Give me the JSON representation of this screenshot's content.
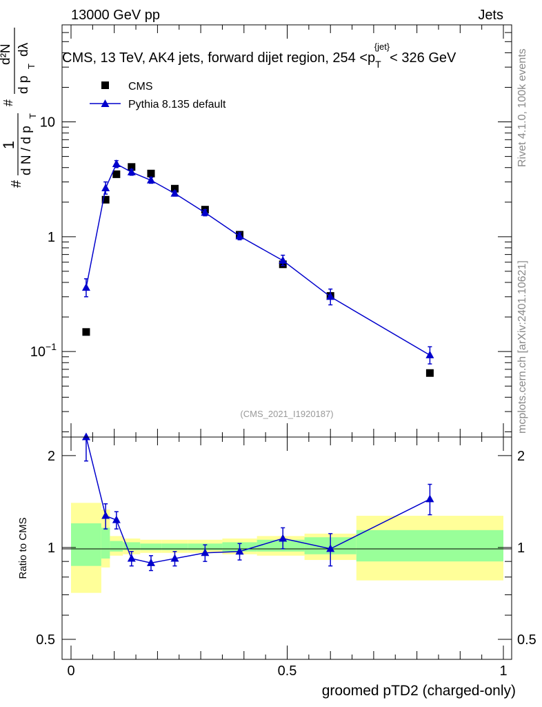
{
  "header": {
    "left": "13000 GeV pp",
    "right": "Jets"
  },
  "side_labels": {
    "rivet": "Rivet 4.1.0,  100k events",
    "mcplots": "mcplots.cern.ch [arXiv:2401.10621]"
  },
  "chart_data": [
    {
      "type": "scatter",
      "panel": "main",
      "title": "CMS, 13 TeV, AK4 jets, forward dijet region, 254 <p_T^{jet}< 326 GeV",
      "title_parts": {
        "prefix": "CMS, 13 TeV, AK4 jets, forward dijet region, 254 <p",
        "sub": "T",
        "sup": "{jet}",
        "suffix": "< 326 GeV"
      },
      "ylabel_text": "# 1/dN/dp_T # d²N/dp_T dλ",
      "ylabel_parts": {
        "hash1": "#",
        "one": "1",
        "dn_over_dp": "d N / d p",
        "sub_t": "T",
        "hash2": "#",
        "num": "d²N",
        "den": "d p",
        "den_tail": "dλ"
      },
      "yscale": "log",
      "xlim": [
        0,
        1
      ],
      "ylim": [
        0.018,
        70
      ],
      "y_ticks": [
        {
          "value": 0.1,
          "base": "10",
          "exp": "−1"
        },
        {
          "value": 1,
          "label": "1"
        },
        {
          "value": 10,
          "label": "10"
        }
      ],
      "watermark": "(CMS_2021_I1920187)",
      "legend": [
        "CMS",
        "Pythia 8.135 default"
      ],
      "legend_position": "top-left",
      "series": [
        {
          "name": "CMS",
          "marker": "square",
          "color": "#000000",
          "x": [
            0.035,
            0.08,
            0.105,
            0.14,
            0.185,
            0.24,
            0.31,
            0.39,
            0.49,
            0.6,
            0.83
          ],
          "y": [
            0.148,
            2.1,
            3.5,
            4.05,
            3.55,
            2.62,
            1.72,
            1.04,
            0.575,
            0.305,
            0.065
          ]
        },
        {
          "name": "Pythia 8.135 default",
          "marker": "triangle",
          "color": "#0000cc",
          "x": [
            0.035,
            0.08,
            0.105,
            0.14,
            0.185,
            0.24,
            0.31,
            0.39,
            0.49,
            0.6,
            0.83
          ],
          "y": [
            0.36,
            2.65,
            4.3,
            3.65,
            3.1,
            2.38,
            1.62,
            1.01,
            0.62,
            0.3,
            0.093
          ],
          "err_lo": [
            0.06,
            0.3,
            0.3,
            0.22,
            0.18,
            0.12,
            0.1,
            0.07,
            0.06,
            0.045,
            0.015
          ],
          "err_hi": [
            0.07,
            0.35,
            0.3,
            0.22,
            0.18,
            0.12,
            0.1,
            0.07,
            0.07,
            0.05,
            0.017
          ]
        }
      ]
    },
    {
      "type": "scatter",
      "panel": "ratio",
      "ylabel": "Ratio to CMS",
      "xlabel": "groomed pTD2 (charged-only)",
      "xlim": [
        0,
        1
      ],
      "ylim": [
        0.43,
        2.3
      ],
      "yscale": "log",
      "y_ticks": [
        {
          "value": 0.5,
          "label": "0.5"
        },
        {
          "value": 1,
          "label": "1"
        },
        {
          "value": 2,
          "label": "2"
        }
      ],
      "x_ticks": [
        {
          "value": 0,
          "label": "0"
        },
        {
          "value": 0.5,
          "label": "0.5"
        },
        {
          "value": 1,
          "label": "1"
        }
      ],
      "uncertainty_bands": [
        {
          "x0": 0.0,
          "x1": 0.07,
          "outer": [
            0.71,
            1.4
          ],
          "inner": [
            0.87,
            1.2
          ]
        },
        {
          "x0": 0.07,
          "x1": 0.09,
          "outer": [
            0.86,
            1.33
          ],
          "inner": [
            0.92,
            1.16
          ]
        },
        {
          "x0": 0.09,
          "x1": 0.12,
          "outer": [
            0.94,
            1.09
          ],
          "inner": [
            0.97,
            1.05
          ]
        },
        {
          "x0": 0.12,
          "x1": 0.16,
          "outer": [
            0.95,
            1.07
          ],
          "inner": [
            0.98,
            1.04
          ]
        },
        {
          "x0": 0.16,
          "x1": 0.21,
          "outer": [
            0.96,
            1.06
          ],
          "inner": [
            0.98,
            1.03
          ]
        },
        {
          "x0": 0.21,
          "x1": 0.27,
          "outer": [
            0.96,
            1.06
          ],
          "inner": [
            0.98,
            1.03
          ]
        },
        {
          "x0": 0.27,
          "x1": 0.35,
          "outer": [
            0.96,
            1.06
          ],
          "inner": [
            0.98,
            1.03
          ]
        },
        {
          "x0": 0.35,
          "x1": 0.43,
          "outer": [
            0.95,
            1.07
          ],
          "inner": [
            0.97,
            1.04
          ]
        },
        {
          "x0": 0.43,
          "x1": 0.54,
          "outer": [
            0.94,
            1.09
          ],
          "inner": [
            0.97,
            1.06
          ]
        },
        {
          "x0": 0.54,
          "x1": 0.66,
          "outer": [
            0.91,
            1.11
          ],
          "inner": [
            0.95,
            1.08
          ]
        },
        {
          "x0": 0.66,
          "x1": 1.0,
          "outer": [
            0.78,
            1.27
          ],
          "inner": [
            0.9,
            1.14
          ]
        }
      ],
      "series": [
        {
          "name": "Pythia 8.135 default / CMS",
          "marker": "triangle",
          "color": "#0000cc",
          "x": [
            0.035,
            0.08,
            0.105,
            0.14,
            0.185,
            0.24,
            0.31,
            0.39,
            0.49,
            0.6,
            0.83
          ],
          "y": [
            2.3,
            1.27,
            1.23,
            0.92,
            0.89,
            0.92,
            0.96,
            0.97,
            1.07,
            0.99,
            1.44
          ],
          "err_lo": [
            0.38,
            0.12,
            0.08,
            0.05,
            0.05,
            0.05,
            0.06,
            0.06,
            0.08,
            0.12,
            0.16
          ],
          "err_hi": [
            0.3,
            0.12,
            0.08,
            0.05,
            0.05,
            0.05,
            0.06,
            0.06,
            0.09,
            0.12,
            0.17
          ]
        }
      ]
    }
  ]
}
